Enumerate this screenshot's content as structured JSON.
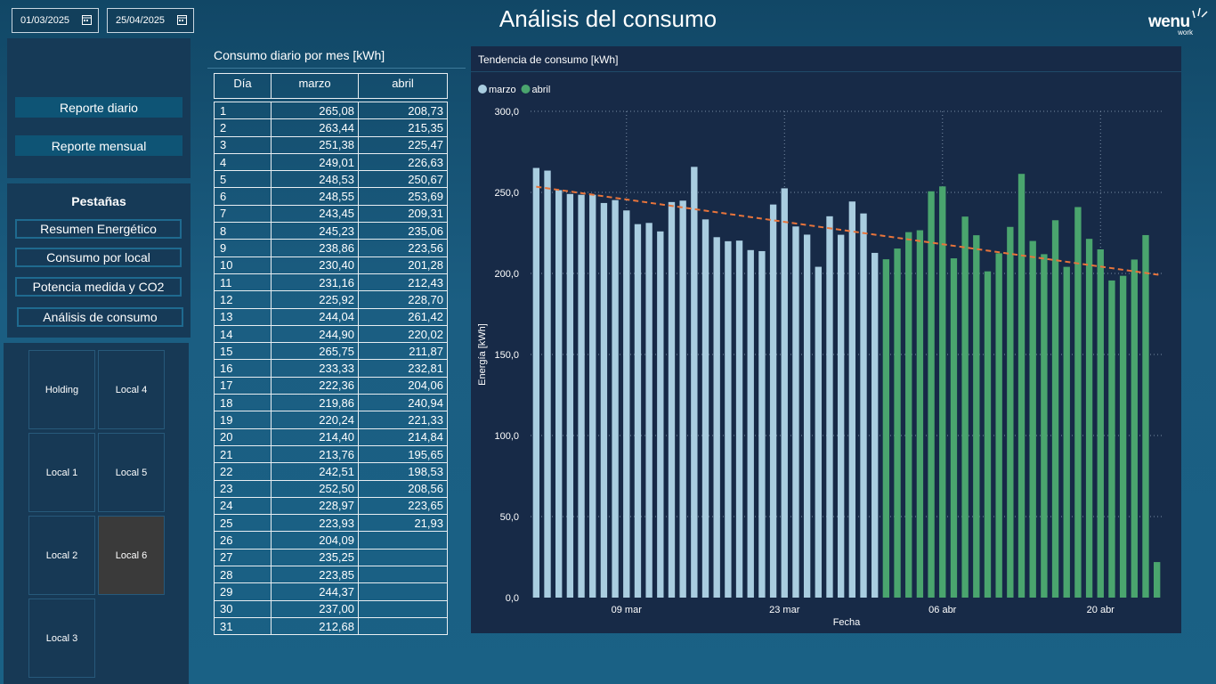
{
  "header": {
    "date_from": "01/03/2025",
    "date_to": "25/04/2025",
    "title": "Análisis del consumo",
    "logo_text": "wenu",
    "logo_sub": "work"
  },
  "reports": {
    "daily": "Reporte diario",
    "monthly": "Reporte mensual"
  },
  "tabs": {
    "title": "Pestañas",
    "items": [
      "Resumen Energético",
      "Consumo por local",
      "Potencia medida y CO2",
      "Análisis de consumo"
    ]
  },
  "locals": [
    "Holding",
    "Local 4",
    "Local 1",
    "Local 5",
    "Local 2",
    "Local 6",
    "Local 3"
  ],
  "table": {
    "title": "Consumo diario por mes [kWh]",
    "headers": [
      "Día",
      "marzo",
      "abril"
    ],
    "rows": [
      [
        "1",
        "265,08",
        "208,73"
      ],
      [
        "2",
        "263,44",
        "215,35"
      ],
      [
        "3",
        "251,38",
        "225,47"
      ],
      [
        "4",
        "249,01",
        "226,63"
      ],
      [
        "5",
        "248,53",
        "250,67"
      ],
      [
        "6",
        "248,55",
        "253,69"
      ],
      [
        "7",
        "243,45",
        "209,31"
      ],
      [
        "8",
        "245,23",
        "235,06"
      ],
      [
        "9",
        "238,86",
        "223,56"
      ],
      [
        "10",
        "230,40",
        "201,28"
      ],
      [
        "11",
        "231,16",
        "212,43"
      ],
      [
        "12",
        "225,92",
        "228,70"
      ],
      [
        "13",
        "244,04",
        "261,42"
      ],
      [
        "14",
        "244,90",
        "220,02"
      ],
      [
        "15",
        "265,75",
        "211,87"
      ],
      [
        "16",
        "233,33",
        "232,81"
      ],
      [
        "17",
        "222,36",
        "204,06"
      ],
      [
        "18",
        "219,86",
        "240,94"
      ],
      [
        "19",
        "220,24",
        "221,33"
      ],
      [
        "20",
        "214,40",
        "214,84"
      ],
      [
        "21",
        "213,76",
        "195,65"
      ],
      [
        "22",
        "242,51",
        "198,53"
      ],
      [
        "23",
        "252,50",
        "208,56"
      ],
      [
        "24",
        "228,97",
        "223,65"
      ],
      [
        "25",
        "223,93",
        "21,93"
      ],
      [
        "26",
        "204,09",
        ""
      ],
      [
        "27",
        "235,25",
        ""
      ],
      [
        "28",
        "223,85",
        ""
      ],
      [
        "29",
        "244,37",
        ""
      ],
      [
        "30",
        "237,00",
        ""
      ],
      [
        "31",
        "212,68",
        ""
      ]
    ]
  },
  "chart_data": {
    "type": "bar",
    "title": "Tendencia de consumo [kWh]",
    "xlabel": "Fecha",
    "ylabel": "Energía [kWh]",
    "ylim": [
      0,
      300
    ],
    "yticks": [
      "0,0",
      "50,0",
      "100,0",
      "150,0",
      "200,0",
      "250,0",
      "300,0"
    ],
    "xticks": [
      "09 mar",
      "23 mar",
      "06 abr",
      "20 abr"
    ],
    "legend": "top-left",
    "grid": true,
    "series": [
      {
        "name": "marzo",
        "color": "#a9cde0",
        "values": [
          265.08,
          263.44,
          251.38,
          249.01,
          248.53,
          248.55,
          243.45,
          245.23,
          238.86,
          230.4,
          231.16,
          225.92,
          244.04,
          244.9,
          265.75,
          233.33,
          222.36,
          219.86,
          220.24,
          214.4,
          213.76,
          242.51,
          252.5,
          228.97,
          223.93,
          204.09,
          235.25,
          223.85,
          244.37,
          237.0,
          212.68
        ]
      },
      {
        "name": "abril",
        "color": "#4aa56e",
        "values": [
          208.73,
          215.35,
          225.47,
          226.63,
          250.67,
          253.69,
          209.31,
          235.06,
          223.56,
          201.28,
          212.43,
          228.7,
          261.42,
          220.02,
          211.87,
          232.81,
          204.06,
          240.94,
          221.33,
          214.84,
          195.65,
          198.53,
          208.56,
          223.65,
          21.93
        ]
      }
    ],
    "trend": {
      "color": "#e8743b",
      "start": 253.5,
      "end": 199.0
    }
  }
}
